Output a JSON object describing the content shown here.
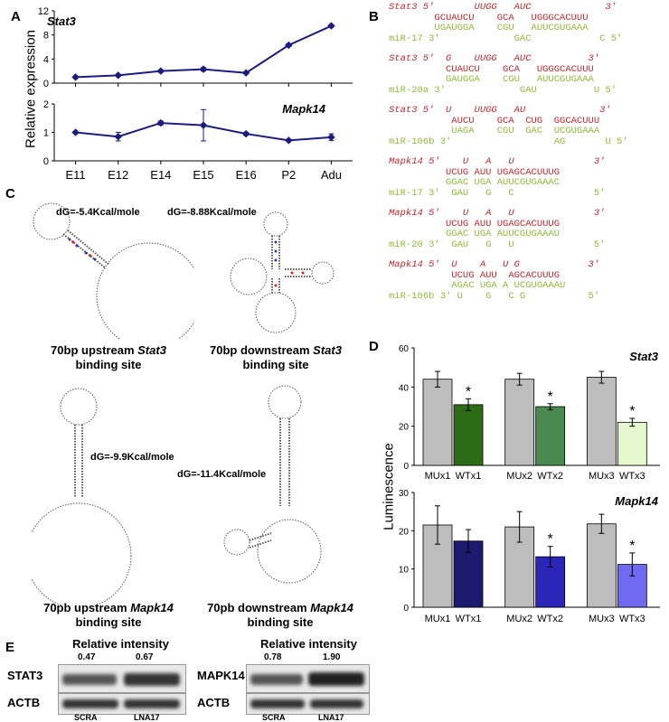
{
  "panelA": {
    "label": "A",
    "ylabel": "Relative expression",
    "top": {
      "title": "Stat3",
      "yticks": [
        "0",
        "4",
        "8",
        "12"
      ]
    },
    "bottom": {
      "title": "Mapk14",
      "yticks": [
        "0",
        "1",
        "2"
      ]
    },
    "xticks": [
      "E11",
      "E12",
      "E14",
      "E15",
      "E16",
      "P2",
      "Adu"
    ]
  },
  "panelB": {
    "label": "B",
    "blocks": [
      {
        "target": "Stat3",
        "mir": "miR-17",
        "lines": [
          "Stat3 5'       UUGG   AUC             3'",
          "        GCUAUCU    GCA   UGGGCACUUU",
          "        UGAUGGA    CGU   AUUCGUGAAA",
          "miR-17 3'             GAC            C 5'"
        ]
      },
      {
        "target": "Stat3",
        "mir": "miR-20a",
        "lines": [
          "Stat3 5'  G    UUGG   AUC          3'",
          "          CUAUCU    GCA   UGGGCACUUU",
          "          GAUGGA    CGU   AUUCGUGAAA",
          "miR-20a 3'             GAU          U 5'"
        ]
      },
      {
        "target": "Stat3",
        "mir": "miR-106b",
        "lines": [
          "Stat3 5'  U    UUGG   AU             3'",
          "           AUCU    GCA  CUG  GGCACUUU",
          "           UAGA    CGU  GAC  UCGUGAAA",
          "miR-106b 3'                  AG       U 5'"
        ]
      },
      {
        "target": "Mapk14",
        "mir": "miR-17",
        "lines": [
          "Mapk14 5'    U   A   U              3'",
          "          UCUG AUU UGAGCACUUUG",
          "          GGAC UGA AUUCGUGAAAC",
          "miR-17 3'  GAU   G   C              5'"
        ]
      },
      {
        "target": "Mapk14",
        "mir": "miR-20",
        "lines": [
          "Mapk14 5'    U   A   U              3'",
          "          UCUG AUU UGAGCACUUUG",
          "          GGAC UGA AUUCGUGAAAU",
          "miR-20 3'  GAU   G   U              5'"
        ]
      },
      {
        "target": "Mapk14",
        "mir": "miR-106b",
        "lines": [
          "Mapk14 5'  U    A   U G            3'",
          "           UCUG AUU  AGCACUUUG",
          "           AGAC UGA A UCGUGAAAU",
          "miR-106b 3' U    G   C G           5'"
        ]
      }
    ]
  },
  "panelC": {
    "label": "C",
    "items": [
      {
        "dg": "dG=-5.4Kcal/mole",
        "cap1": "70bp upstream ",
        "cap1it": "Stat3",
        "cap2": "binding site"
      },
      {
        "dg": "dG=-8.88Kcal/mole",
        "cap1": "70bp downstream ",
        "cap1it": "Stat3",
        "cap2": "binding site"
      },
      {
        "dg": "dG=-9.9Kcal/mole",
        "cap1": "70pb upstream ",
        "cap1it": "Mapk14",
        "cap2": "binding site"
      },
      {
        "dg": "dG=-11.4Kcal/mole",
        "cap1": "70pb downstream ",
        "cap1it": "Mapk14",
        "cap2": "binding site"
      }
    ]
  },
  "panelD": {
    "label": "D",
    "ylabel": "Luminescence",
    "top": {
      "title": "Stat3",
      "yticks": [
        "0",
        "20",
        "40",
        "60"
      ]
    },
    "bottom": {
      "title": "Mapk14",
      "yticks": [
        "0",
        "10",
        "20",
        "30"
      ]
    },
    "xlabels": [
      "MUx1",
      "WTx1",
      "MUx2",
      "WTx2",
      "MUx3",
      "WTx3"
    ],
    "star": "*"
  },
  "panelE": {
    "label": "E",
    "left": {
      "header": "Relative intensity",
      "vals": [
        "0.47",
        "0.67"
      ],
      "row1": "STAT3",
      "row2": "ACTB",
      "lanes": [
        "SCRA",
        "LNA17"
      ]
    },
    "right": {
      "header": "Relative intensity",
      "vals": [
        "0.78",
        "1.90"
      ],
      "row1": "MAPK14",
      "row2": "ACTB",
      "lanes": [
        "SCRA",
        "LNA17"
      ]
    }
  },
  "chart_data": [
    {
      "type": "line",
      "title": "Stat3",
      "xlabel": "",
      "ylabel": "Relative expression",
      "categories": [
        "E11",
        "E12",
        "E14",
        "E15",
        "E16",
        "P2",
        "Adu"
      ],
      "series": [
        {
          "values": [
            1.0,
            1.3,
            2.0,
            2.3,
            1.7,
            6.3,
            9.5
          ],
          "errors": [
            0.1,
            0.1,
            0.2,
            0.3,
            0.1,
            0.2,
            0.2
          ]
        }
      ],
      "ylim": [
        0,
        12
      ]
    },
    {
      "type": "line",
      "title": "Mapk14",
      "xlabel": "",
      "ylabel": "Relative expression",
      "categories": [
        "E11",
        "E12",
        "E14",
        "E15",
        "E16",
        "P2",
        "Adu"
      ],
      "series": [
        {
          "values": [
            1.0,
            0.85,
            1.33,
            1.25,
            0.95,
            0.72,
            0.83
          ],
          "errors": [
            0.03,
            0.15,
            0.07,
            0.55,
            0.05,
            0.03,
            0.12
          ]
        }
      ],
      "ylim": [
        0,
        2
      ]
    },
    {
      "type": "bar",
      "title": "Stat3",
      "ylabel": "Luminescence",
      "categories": [
        "MUx1",
        "WTx1",
        "MUx2",
        "WTx2",
        "MUx3",
        "WTx3"
      ],
      "values": [
        44,
        31,
        44,
        30,
        45,
        22
      ],
      "errors": [
        4,
        3,
        3,
        1.5,
        3,
        2
      ],
      "colors": [
        "#bdbdbd",
        "#2e6b17",
        "#bdbdbd",
        "#4a8a50",
        "#bdbdbd",
        "#e6f8cf"
      ],
      "significant": [
        false,
        true,
        false,
        true,
        false,
        true
      ],
      "ylim": [
        0,
        60
      ]
    },
    {
      "type": "bar",
      "title": "Mapk14",
      "ylabel": "Luminescence",
      "categories": [
        "MUx1",
        "WTx1",
        "MUx2",
        "WTx2",
        "MUx3",
        "WTx3"
      ],
      "values": [
        21.5,
        17.3,
        21,
        13.2,
        21.8,
        11.2
      ],
      "errors": [
        5,
        3,
        4,
        2.7,
        2.5,
        3
      ],
      "colors": [
        "#bdbdbd",
        "#1a1a6e",
        "#bdbdbd",
        "#2b25b8",
        "#bdbdbd",
        "#6f6af0"
      ],
      "significant": [
        false,
        false,
        false,
        true,
        false,
        true
      ],
      "ylim": [
        0,
        30
      ]
    }
  ]
}
